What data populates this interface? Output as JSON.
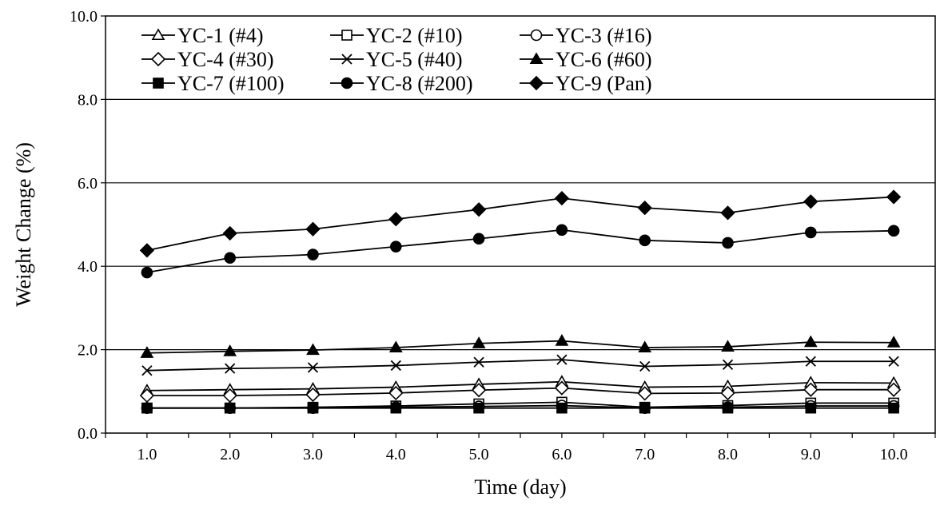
{
  "chart_data": {
    "type": "line",
    "title": "",
    "xlabel": "Time (day)",
    "ylabel": "Weight Change (%)",
    "x": [
      1,
      2,
      3,
      4,
      5,
      6,
      7,
      8,
      9,
      10
    ],
    "x_tick_labels": [
      "1.0",
      "2.0",
      "3.0",
      "4.0",
      "5.0",
      "6.0",
      "7.0",
      "8.0",
      "9.0",
      "10.0"
    ],
    "xlim": [
      0.5,
      10.5
    ],
    "ylim": [
      0,
      10
    ],
    "y_ticks": [
      0,
      2,
      4,
      6,
      8,
      10
    ],
    "y_tick_labels": [
      "0.0",
      "2.0",
      "4.0",
      "6.0",
      "8.0",
      "10.0"
    ],
    "grid": "horizontal",
    "legend_position": "top-left",
    "series": [
      {
        "name": "YC-1 (#4)",
        "marker": "triangle-open",
        "values": [
          1.02,
          1.04,
          1.06,
          1.1,
          1.17,
          1.23,
          1.1,
          1.12,
          1.21,
          1.2
        ]
      },
      {
        "name": "YC-2 (#10)",
        "marker": "square-open",
        "values": [
          0.6,
          0.6,
          0.62,
          0.65,
          0.7,
          0.74,
          0.62,
          0.66,
          0.72,
          0.72
        ]
      },
      {
        "name": "YC-3 (#16)",
        "marker": "circle-open",
        "values": [
          0.6,
          0.6,
          0.6,
          0.62,
          0.64,
          0.66,
          0.6,
          0.62,
          0.65,
          0.65
        ]
      },
      {
        "name": "YC-4 (#30)",
        "marker": "diamond-open",
        "values": [
          0.9,
          0.9,
          0.92,
          0.96,
          1.03,
          1.08,
          0.95,
          0.96,
          1.04,
          1.04
        ]
      },
      {
        "name": "YC-5 (#40)",
        "marker": "x",
        "values": [
          1.5,
          1.55,
          1.57,
          1.62,
          1.7,
          1.76,
          1.6,
          1.64,
          1.72,
          1.72
        ]
      },
      {
        "name": "YC-6 (#60)",
        "marker": "triangle-filled",
        "values": [
          1.92,
          1.96,
          1.99,
          2.05,
          2.15,
          2.21,
          2.05,
          2.07,
          2.18,
          2.17
        ]
      },
      {
        "name": "YC-7 (#100)",
        "marker": "square-filled",
        "values": [
          0.6,
          0.6,
          0.6,
          0.6,
          0.6,
          0.6,
          0.6,
          0.6,
          0.6,
          0.6
        ]
      },
      {
        "name": "YC-8 (#200)",
        "marker": "circle-filled",
        "values": [
          3.85,
          4.2,
          4.28,
          4.47,
          4.66,
          4.87,
          4.62,
          4.56,
          4.81,
          4.85
        ]
      },
      {
        "name": "YC-9 (Pan)",
        "marker": "diamond-filled",
        "values": [
          4.38,
          4.79,
          4.89,
          5.13,
          5.36,
          5.63,
          5.4,
          5.28,
          5.55,
          5.66
        ]
      }
    ]
  }
}
